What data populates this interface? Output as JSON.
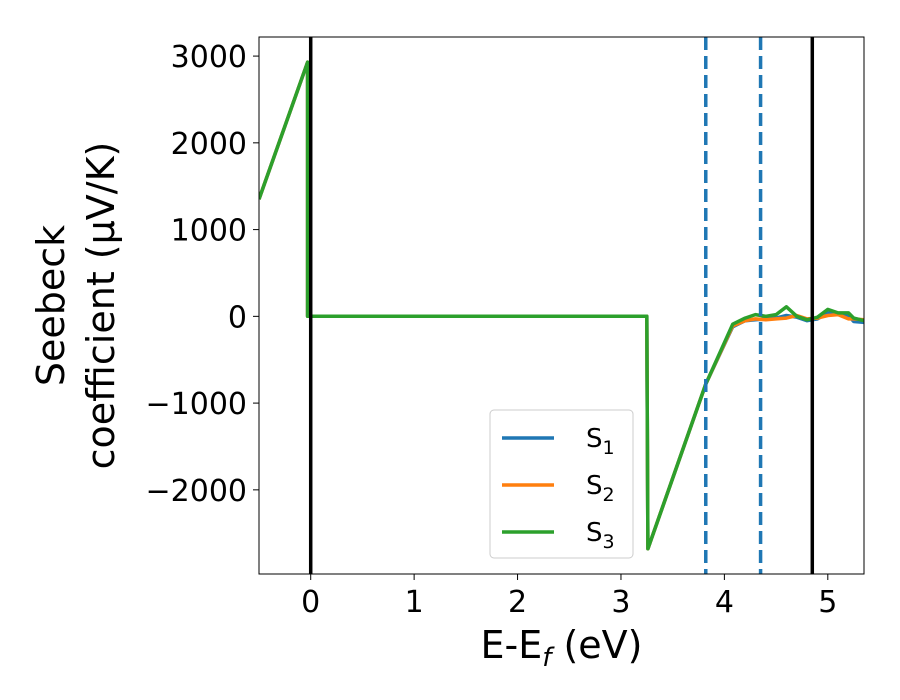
{
  "chart_data": {
    "type": "line",
    "xlabel": "E-E",
    "xlabel_sub": "f",
    "xlabel_unit": " (eV)",
    "ylabel_line1": "Seebeck",
    "ylabel_line2": "coefficient  (μV/K)",
    "xlim": [
      -0.5,
      5.35
    ],
    "ylim": [
      -2970,
      3220
    ],
    "x_ticks": [
      0,
      1,
      2,
      3,
      4,
      5
    ],
    "x_tick_labels": [
      "0",
      "1",
      "2",
      "3",
      "4",
      "5"
    ],
    "y_ticks": [
      3000,
      2000,
      1000,
      0,
      -1000,
      -2000
    ],
    "y_tick_labels": [
      "3000",
      "2000",
      "1000",
      "0",
      "−1000",
      "−2000"
    ],
    "grid": false,
    "legend_position": "lower-right",
    "vlines_solid": [
      0.0,
      4.85
    ],
    "vlines_dashed": [
      3.82,
      4.35
    ],
    "vline_solid_color": "#000000",
    "vline_dashed_color": "#1f77b4",
    "series": [
      {
        "name": "S",
        "sub": "1",
        "color": "#1f77b4",
        "x": [
          -0.5,
          -0.03,
          -0.03,
          3.25,
          3.25,
          3.26,
          3.82,
          4.08,
          4.2,
          4.3,
          4.4,
          4.5,
          4.6,
          4.7,
          4.8,
          4.9,
          5.0,
          5.1,
          5.2,
          5.25,
          5.35
        ],
        "y": [
          1350,
          2930,
          0,
          0,
          0,
          -2680,
          -780,
          -120,
          -50,
          -40,
          -30,
          -20,
          10,
          -10,
          -50,
          -30,
          40,
          20,
          10,
          -60,
          -70
        ]
      },
      {
        "name": "S",
        "sub": "2",
        "color": "#ff7f0e",
        "x": [
          -0.5,
          -0.03,
          -0.03,
          3.25,
          3.25,
          3.26,
          3.82,
          4.08,
          4.2,
          4.3,
          4.4,
          4.5,
          4.6,
          4.7,
          4.8,
          4.9,
          5.0,
          5.1,
          5.2,
          5.25,
          5.35
        ],
        "y": [
          1350,
          2930,
          0,
          0,
          0,
          -2680,
          -780,
          -110,
          -50,
          -30,
          -40,
          -30,
          -20,
          10,
          -30,
          -20,
          10,
          20,
          -30,
          -30,
          -40
        ]
      },
      {
        "name": "S",
        "sub": "3",
        "color": "#2ca02c",
        "x": [
          -0.5,
          -0.03,
          -0.03,
          3.25,
          3.25,
          3.26,
          3.82,
          4.08,
          4.2,
          4.3,
          4.4,
          4.5,
          4.6,
          4.7,
          4.8,
          4.9,
          5.0,
          5.1,
          5.2,
          5.25,
          5.35
        ],
        "y": [
          1350,
          2930,
          0,
          0,
          0,
          -2680,
          -780,
          -90,
          -20,
          20,
          0,
          20,
          110,
          0,
          -40,
          -10,
          80,
          40,
          40,
          -20,
          -50
        ]
      }
    ]
  }
}
